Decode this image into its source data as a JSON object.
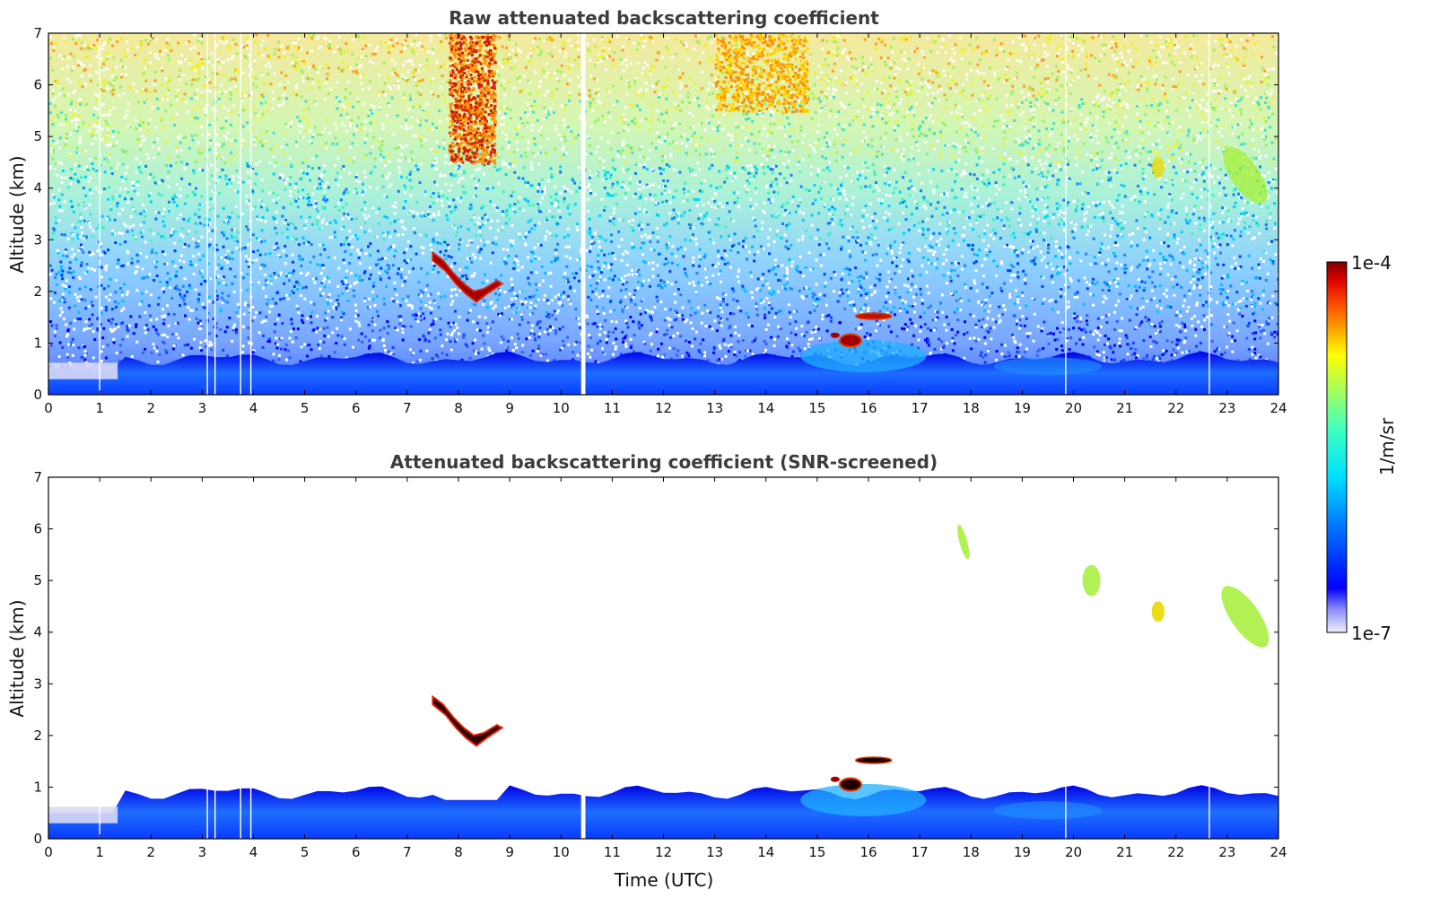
{
  "chart_data": [
    {
      "type": "heatmap",
      "title": "Raw attenuated backscattering coefficient",
      "xlabel": "",
      "ylabel": "Altitude (km)",
      "xlim": [
        0,
        24
      ],
      "ylim": [
        0,
        7
      ],
      "x_ticks": [
        0,
        1,
        2,
        3,
        4,
        5,
        6,
        7,
        8,
        9,
        10,
        11,
        12,
        13,
        14,
        15,
        16,
        17,
        18,
        19,
        20,
        21,
        22,
        23,
        24
      ],
      "y_ticks": [
        0,
        1,
        2,
        3,
        4,
        5,
        6,
        7
      ],
      "missing_profiles_utc": [
        1.0,
        3.1,
        3.25,
        3.75,
        3.95,
        10.42,
        10.45,
        19.85,
        22.65
      ],
      "features": [
        {
          "kind": "boundary_layer",
          "x_range": [
            0,
            24
          ],
          "top_km": 0.7
        },
        {
          "kind": "cloud",
          "x_range": [
            7.2,
            8.9
          ],
          "y_range": [
            1.6,
            2.8
          ]
        },
        {
          "kind": "cloud",
          "x_range": [
            15.3,
            16.4
          ],
          "y_range": [
            0.9,
            1.6
          ]
        },
        {
          "kind": "cirrus",
          "x_range": [
            21.4,
            21.9
          ],
          "y_range": [
            4.2,
            4.6
          ]
        },
        {
          "kind": "cirrus",
          "x_range": [
            22.8,
            23.9
          ],
          "y_range": [
            3.6,
            4.9
          ]
        }
      ]
    },
    {
      "type": "heatmap",
      "title": "Attenuated backscattering coefficient (SNR-screened)",
      "xlabel": "Time (UTC)",
      "ylabel": "Altitude (km)",
      "xlim": [
        0,
        24
      ],
      "ylim": [
        0,
        7
      ],
      "x_ticks": [
        0,
        1,
        2,
        3,
        4,
        5,
        6,
        7,
        8,
        9,
        10,
        11,
        12,
        13,
        14,
        15,
        16,
        17,
        18,
        19,
        20,
        21,
        22,
        23,
        24
      ],
      "y_ticks": [
        0,
        1,
        2,
        3,
        4,
        5,
        6,
        7
      ],
      "features": [
        {
          "kind": "boundary_layer",
          "x_range": [
            0,
            24
          ],
          "top_km": 0.9
        },
        {
          "kind": "cloud",
          "x_range": [
            7.2,
            8.9
          ],
          "y_range": [
            1.6,
            2.8
          ]
        },
        {
          "kind": "cloud",
          "x_range": [
            15.3,
            16.4
          ],
          "y_range": [
            0.9,
            1.6
          ]
        },
        {
          "kind": "cirrus",
          "x_range": [
            17.7,
            18.0
          ],
          "y_range": [
            5.4,
            6.1
          ]
        },
        {
          "kind": "cirrus",
          "x_range": [
            20.0,
            20.7
          ],
          "y_range": [
            4.7,
            5.3
          ]
        },
        {
          "kind": "cirrus",
          "x_range": [
            21.4,
            21.9
          ],
          "y_range": [
            4.2,
            4.6
          ]
        },
        {
          "kind": "cirrus",
          "x_range": [
            22.8,
            23.9
          ],
          "y_range": [
            3.6,
            5.0
          ]
        }
      ]
    }
  ],
  "colorbar": {
    "label": "1/m/sr",
    "max_label": "1e-4",
    "min_label": "1e-7",
    "colormap": "jet",
    "scale": "log"
  }
}
